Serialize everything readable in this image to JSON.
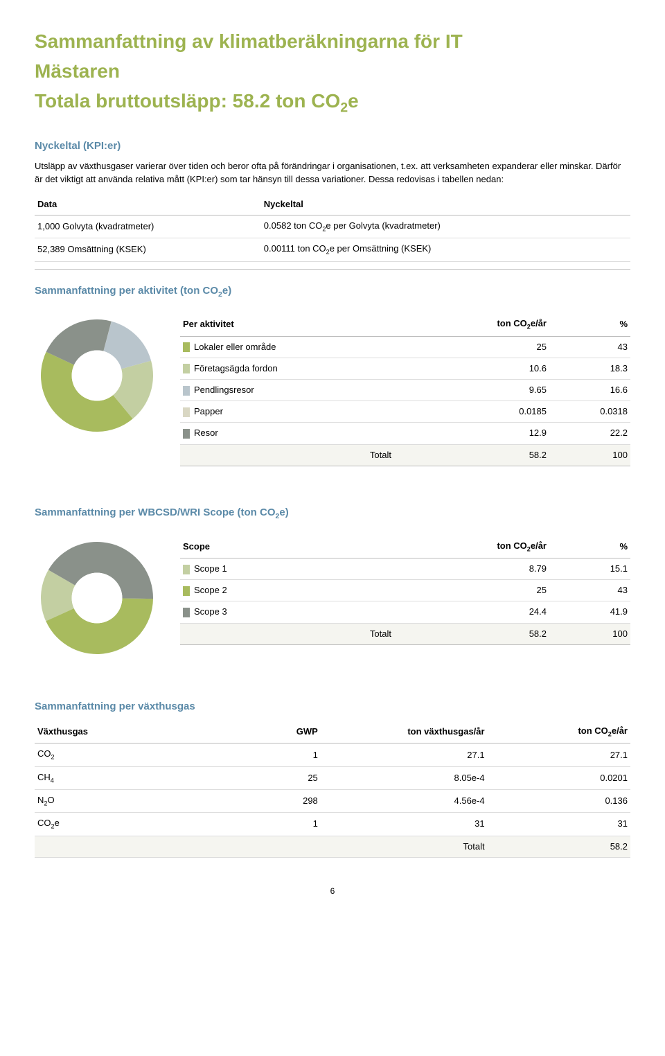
{
  "colors": {
    "olive": "#9db350",
    "blue_heading": "#5b8aa8",
    "text": "#000000"
  },
  "title": {
    "line1": "Sammanfattning av klimatberäkningarna för IT",
    "line2": "Mästaren",
    "line3_prefix": "Totala bruttoutsläpp: 58.2 ton CO",
    "line3_suffix": "e"
  },
  "kpi_section": {
    "heading": "Nyckeltal (KPI:er)",
    "intro": "Utsläpp av växthusgaser varierar över tiden och beror ofta på förändringar i organisationen, t.ex. att verksamheten expanderar eller minskar. Därför är det viktigt att använda relativa mått (KPI:er) som tar hänsyn till dessa variationer. Dessa redovisas i tabellen nedan:",
    "col1": "Data",
    "col2": "Nyckeltal",
    "rows": [
      {
        "data": "1,000 Golvyta (kvadratmeter)",
        "kpi_pre": "0.0582 ton CO",
        "kpi_post": "e per Golvyta (kvadratmeter)"
      },
      {
        "data": "52,389 Omsättning (KSEK)",
        "kpi_pre": "0.00111 ton CO",
        "kpi_post": "e per Omsättning (KSEK)"
      }
    ]
  },
  "activity_section": {
    "heading_pre": "Sammanfattning per aktivitet (ton CO",
    "heading_post": "e)",
    "table": {
      "h1": "Per aktivitet",
      "h2_pre": "ton CO",
      "h2_post": "e/år",
      "h3": "%",
      "rows": [
        {
          "label": "Lokaler eller område",
          "value": "25",
          "pct": "43",
          "color": "#a8bb5e"
        },
        {
          "label": "Företagsägda fordon",
          "value": "10.6",
          "pct": "18.3",
          "color": "#c3cfa2"
        },
        {
          "label": "Pendlingsresor",
          "value": "9.65",
          "pct": "16.6",
          "color": "#b9c5cc"
        },
        {
          "label": "Papper",
          "value": "0.0185",
          "pct": "0.0318",
          "color": "#d9d7c3"
        },
        {
          "label": "Resor",
          "value": "12.9",
          "pct": "22.2",
          "color": "#8a918a"
        }
      ],
      "total_label": "Totalt",
      "total_value": "58.2",
      "total_pct": "100"
    },
    "donut": {
      "slices": [
        {
          "color": "#a8bb5e",
          "pct": 43
        },
        {
          "color": "#c3cfa2",
          "pct": 18.3
        },
        {
          "color": "#b9c5cc",
          "pct": 16.6
        },
        {
          "color": "#d9d7c3",
          "pct": 0.0318
        },
        {
          "color": "#8a918a",
          "pct": 22.2
        }
      ],
      "start_angle_deg": -155,
      "direction": "ccw",
      "inner_ratio": 0.45
    }
  },
  "scope_section": {
    "heading_pre": "Sammanfattning per WBCSD/WRI Scope (ton CO",
    "heading_post": "e)",
    "table": {
      "h1": "Scope",
      "h2_pre": "ton CO",
      "h2_post": "e/år",
      "h3": "%",
      "rows": [
        {
          "label": "Scope 1",
          "value": "8.79",
          "pct": "15.1",
          "color": "#c3cfa2"
        },
        {
          "label": "Scope 2",
          "value": "25",
          "pct": "43",
          "color": "#a8bb5e"
        },
        {
          "label": "Scope 3",
          "value": "24.4",
          "pct": "41.9",
          "color": "#8a918a"
        }
      ],
      "total_label": "Totalt",
      "total_value": "58.2",
      "total_pct": "100"
    },
    "donut": {
      "slices": [
        {
          "color": "#c3cfa2",
          "pct": 15.1
        },
        {
          "color": "#a8bb5e",
          "pct": 43
        },
        {
          "color": "#8a918a",
          "pct": 41.9
        }
      ],
      "start_angle_deg": -150,
      "direction": "ccw",
      "inner_ratio": 0.45
    }
  },
  "ghg_section": {
    "heading": "Sammanfattning per växthusgas",
    "h1": "Växthusgas",
    "h2": "GWP",
    "h3": "ton växthusgas/år",
    "h4_pre": "ton CO",
    "h4_post": "e/år",
    "rows": [
      {
        "gas_pre": "CO",
        "gas_sub": "2",
        "gas_post": "",
        "gwp": "1",
        "ton": "27.1",
        "co2e": "27.1"
      },
      {
        "gas_pre": "CH",
        "gas_sub": "4",
        "gas_post": "",
        "gwp": "25",
        "ton": "8.05e-4",
        "co2e": "0.0201"
      },
      {
        "gas_pre": "N",
        "gas_sub": "2",
        "gas_post": "O",
        "gwp": "298",
        "ton": "4.56e-4",
        "co2e": "0.136"
      },
      {
        "gas_pre": "CO",
        "gas_sub": "2",
        "gas_post": "e",
        "gwp": "1",
        "ton": "31",
        "co2e": "31"
      }
    ],
    "total_label": "Totalt",
    "total_value": "58.2"
  },
  "page_number": "6"
}
